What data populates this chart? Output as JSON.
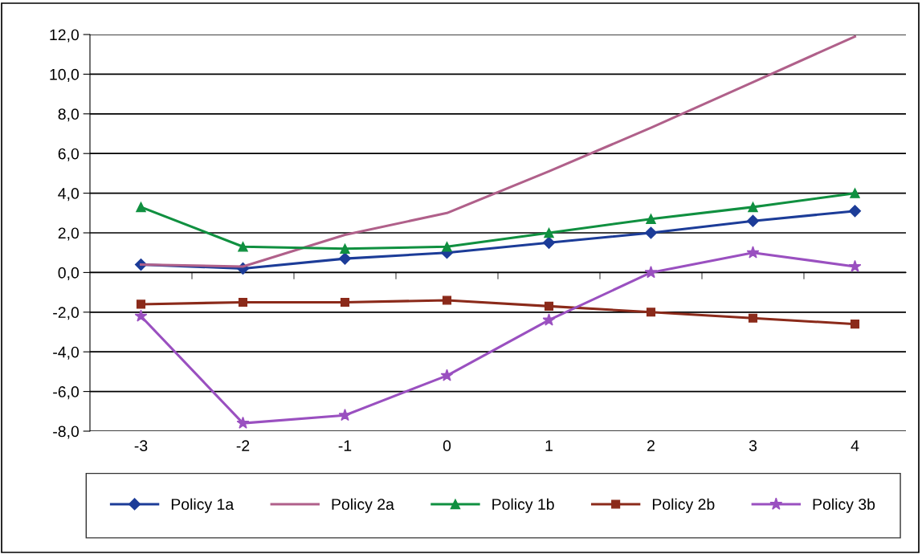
{
  "chart_data": {
    "type": "line",
    "categories": [
      "-3",
      "-2",
      "-1",
      "0",
      "1",
      "2",
      "3",
      "4"
    ],
    "series": [
      {
        "name": "Policy 1a",
        "color": "#1c3c98",
        "marker": "diamond",
        "values": [
          0.4,
          0.2,
          0.7,
          1.0,
          1.5,
          2.0,
          2.6,
          3.1
        ]
      },
      {
        "name": "Policy 2a",
        "color": "#b0608a",
        "marker": "none",
        "values": [
          0.4,
          0.3,
          1.9,
          3.0,
          5.1,
          7.3,
          9.6,
          11.9
        ]
      },
      {
        "name": "Policy 1b",
        "color": "#109040",
        "marker": "triangle",
        "values": [
          3.3,
          1.3,
          1.2,
          1.3,
          2.0,
          2.7,
          3.3,
          4.0
        ]
      },
      {
        "name": "Policy 2b",
        "color": "#8b2a1a",
        "marker": "square",
        "values": [
          -1.6,
          -1.5,
          -1.5,
          -1.4,
          -1.7,
          -2.0,
          -2.3,
          -2.6
        ]
      },
      {
        "name": "Policy 3b",
        "color": "#9a50c0",
        "marker": "star",
        "values": [
          -2.2,
          -7.6,
          -7.2,
          -5.2,
          -2.4,
          0.0,
          1.0,
          0.3
        ]
      }
    ],
    "ylim": [
      -8,
      12
    ],
    "yticks": [
      {
        "value": -8,
        "label": "-8,0"
      },
      {
        "value": -6,
        "label": "-6,0"
      },
      {
        "value": -4,
        "label": "-4,0"
      },
      {
        "value": -2,
        "label": "-2,0"
      },
      {
        "value": 0,
        "label": "0,0"
      },
      {
        "value": 2,
        "label": "2,0"
      },
      {
        "value": 4,
        "label": "4,0"
      },
      {
        "value": 6,
        "label": "6,0"
      },
      {
        "value": 8,
        "label": "8,0"
      },
      {
        "value": 10,
        "label": "10,0"
      },
      {
        "value": 12,
        "label": "12,0"
      }
    ],
    "grid": "y",
    "legend": "bottom",
    "line_style": "solid"
  }
}
